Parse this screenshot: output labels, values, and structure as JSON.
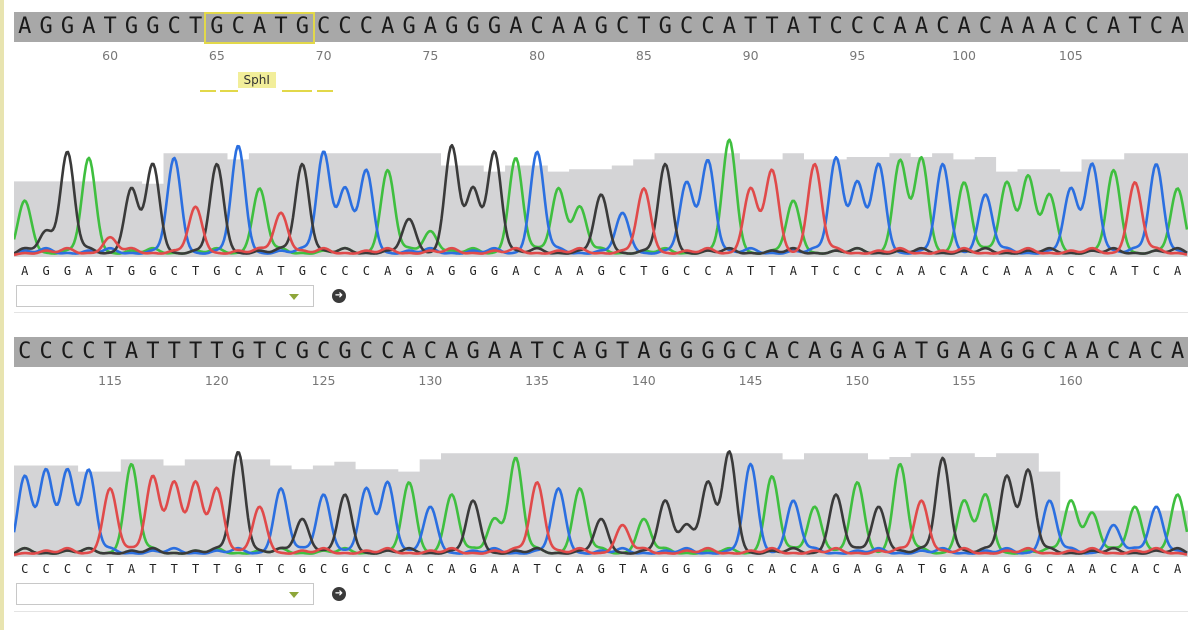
{
  "colors": {
    "A": "#3fbf3f",
    "C": "#2b6fe0",
    "G": "#3a3a3a",
    "T": "#e04a4a",
    "quality": "#d4d4d6",
    "header": "#a8a8a8",
    "highlight": "#e2d84a"
  },
  "chart_data": [
    {
      "type": "line",
      "sequence": "AGGATGGCTGCATGCCCAGAGGGACAAGCTGCCATTATCCCAACACAAACCATCA",
      "calls": "AGGATGGCTGCATGCCCAGAGGGACAAGCTGCCATTATCCCAACACAAACCATCA",
      "first_position": 56,
      "position_labels": [
        60,
        65,
        70,
        75,
        80,
        85,
        90,
        95,
        100,
        105
      ],
      "restriction_site": {
        "name": "SphI",
        "start": 65,
        "end": 69
      },
      "peak_heights": [
        0.45,
        0.2,
        0.85,
        0.8,
        0.15,
        0.55,
        0.75,
        0.8,
        0.4,
        0.75,
        0.9,
        0.55,
        0.35,
        0.75,
        0.85,
        0.55,
        0.7,
        0.7,
        0.3,
        0.2,
        0.9,
        0.55,
        0.85,
        0.8,
        0.85,
        0.55,
        0.4,
        0.5,
        0.35,
        0.55,
        0.75,
        0.6,
        0.78,
        0.95,
        0.55,
        0.7,
        0.45,
        0.75,
        0.8,
        0.6,
        0.75,
        0.78,
        0.8,
        0.75,
        0.6,
        0.5,
        0.6,
        0.65,
        0.5,
        0.55,
        0.75,
        0.7,
        0.6,
        0.75,
        0.55
      ],
      "quality": [
        0.62,
        0.62,
        0.62,
        0.62,
        0.62,
        0.62,
        0.6,
        0.85,
        0.85,
        0.85,
        0.8,
        0.85,
        0.85,
        0.85,
        0.85,
        0.85,
        0.85,
        0.85,
        0.85,
        0.85,
        0.75,
        0.75,
        0.7,
        0.75,
        0.75,
        0.7,
        0.72,
        0.72,
        0.75,
        0.8,
        0.85,
        0.85,
        0.85,
        0.85,
        0.8,
        0.8,
        0.85,
        0.8,
        0.8,
        0.82,
        0.82,
        0.85,
        0.82,
        0.85,
        0.8,
        0.82,
        0.7,
        0.72,
        0.72,
        0.7,
        0.8,
        0.8,
        0.85,
        0.85,
        0.85
      ]
    },
    {
      "type": "line",
      "sequence": "CCCCTATTTTGTCGCGCCACAGAATCAGTAGGGGCACAGAGATGAAGGCAACACA",
      "calls": "CCCCTATTTTGTCGCGCCACAGAATCAGTAGGGGCACAGAGATGAAGGCAACACA",
      "first_position": 111,
      "position_labels": [
        115,
        120,
        125,
        130,
        135,
        140,
        145,
        150,
        155,
        160
      ],
      "peak_heights": [
        0.65,
        0.7,
        0.7,
        0.7,
        0.55,
        0.75,
        0.65,
        0.6,
        0.6,
        0.55,
        0.85,
        0.4,
        0.55,
        0.3,
        0.5,
        0.5,
        0.55,
        0.6,
        0.6,
        0.4,
        0.5,
        0.45,
        0.3,
        0.8,
        0.6,
        0.55,
        0.55,
        0.3,
        0.25,
        0.3,
        0.45,
        0.25,
        0.6,
        0.85,
        0.75,
        0.65,
        0.45,
        0.4,
        0.5,
        0.6,
        0.4,
        0.75,
        0.45,
        0.8,
        0.45,
        0.5,
        0.65,
        0.7,
        0.45,
        0.45,
        0.35,
        0.25,
        0.4,
        0.4,
        0.5
      ],
      "quality": [
        0.75,
        0.75,
        0.75,
        0.7,
        0.7,
        0.8,
        0.8,
        0.75,
        0.8,
        0.8,
        0.8,
        0.8,
        0.75,
        0.72,
        0.75,
        0.78,
        0.72,
        0.72,
        0.7,
        0.8,
        0.85,
        0.85,
        0.85,
        0.85,
        0.85,
        0.85,
        0.85,
        0.85,
        0.85,
        0.85,
        0.85,
        0.85,
        0.85,
        0.85,
        0.85,
        0.85,
        0.8,
        0.85,
        0.85,
        0.85,
        0.8,
        0.82,
        0.85,
        0.85,
        0.85,
        0.82,
        0.85,
        0.85,
        0.7,
        0.38,
        0.38,
        0.38,
        0.38,
        0.38,
        0.38
      ]
    }
  ]
}
